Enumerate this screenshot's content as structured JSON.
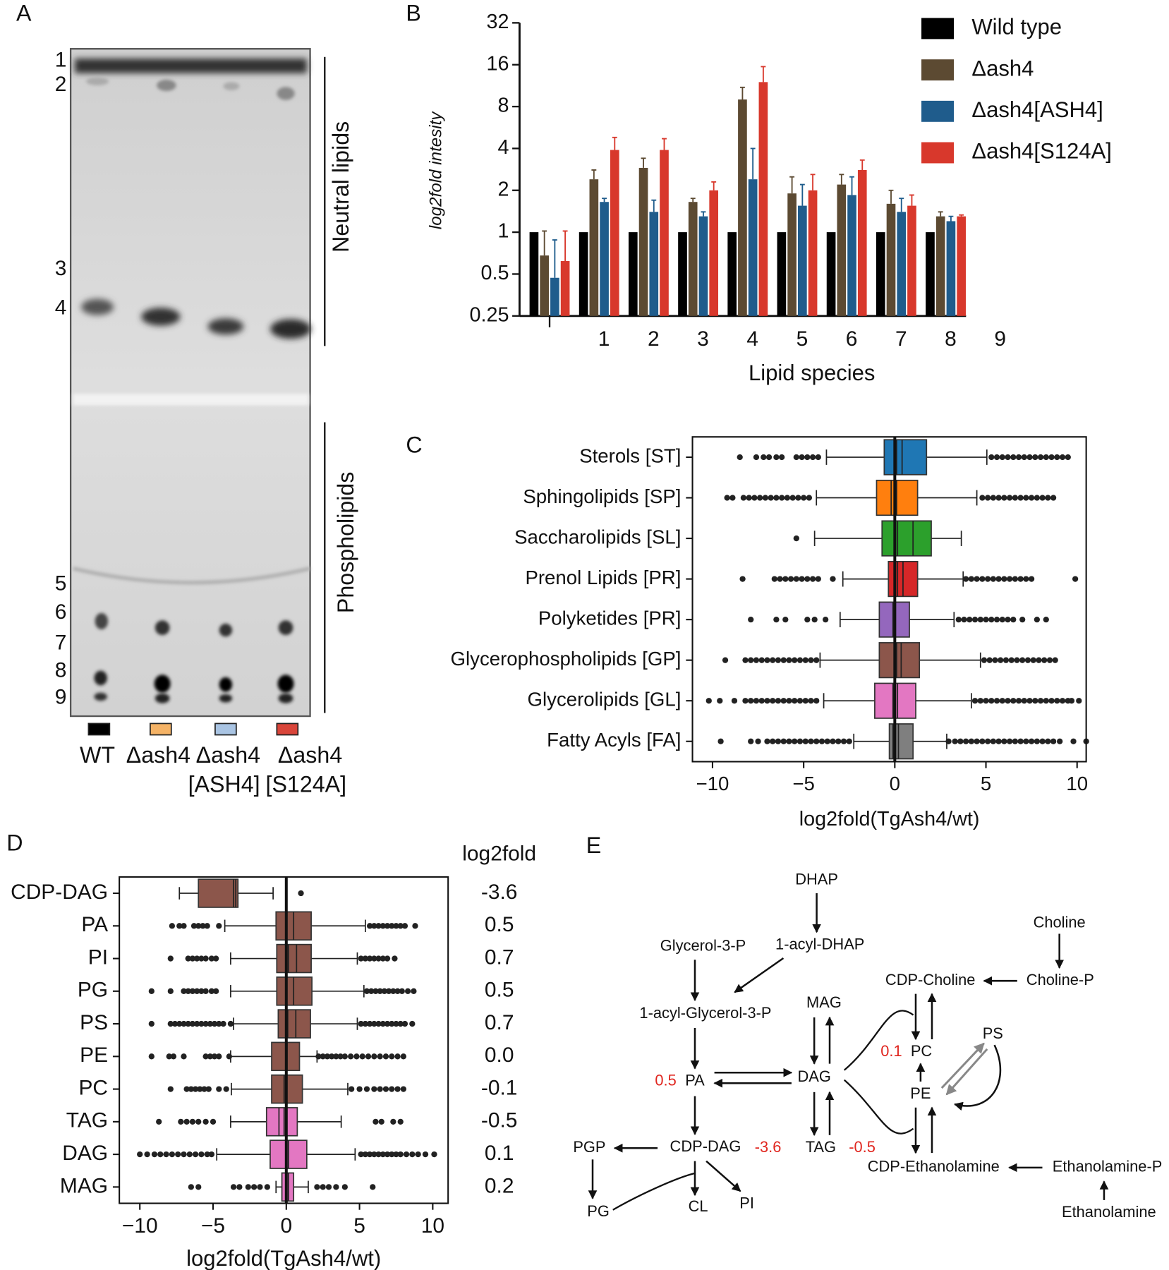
{
  "panel_a": {
    "label": "A",
    "band_numbers": [
      "1",
      "2",
      "3",
      "4",
      "5",
      "6",
      "7",
      "8",
      "9"
    ],
    "regions": [
      "Neutral lipids",
      "Phospholipids"
    ],
    "lanes": [
      {
        "lines": [
          "WT"
        ],
        "color": "#000000"
      },
      {
        "lines": [
          "Δash4"
        ],
        "color": "#f5b366"
      },
      {
        "lines": [
          "Δash4",
          "[ASH4]"
        ],
        "color": "#a9c4e3"
      },
      {
        "lines": [
          "Δash4",
          "[S124A]"
        ],
        "color": "#d9453a"
      }
    ]
  },
  "chart_data": [
    {
      "type": "bar",
      "panel": "B",
      "ylabel": "log2fold intesity",
      "xlabel": "Lipid species",
      "log_base": 2,
      "ylim": [
        0.25,
        32
      ],
      "yticks": [
        0.25,
        0.5,
        1,
        2,
        4,
        8,
        16,
        32
      ],
      "legend": "outside right",
      "categories": [
        null,
        "1",
        "2",
        "3",
        "4",
        "5",
        "6",
        "7",
        "8",
        "9"
      ],
      "series": [
        {
          "name": "Wild type",
          "color": "#000000",
          "values": [
            1,
            1,
            1,
            1,
            1,
            1,
            1,
            1,
            1,
            null
          ]
        },
        {
          "name": "Δash4",
          "color": "#5c4a32",
          "values": [
            0.68,
            2.4,
            2.9,
            1.65,
            9,
            1.9,
            2.2,
            1.6,
            1.3,
            null
          ],
          "errors": [
            0.34,
            0.4,
            0.5,
            0.1,
            2,
            0.6,
            0.4,
            0.4,
            0.1,
            null
          ]
        },
        {
          "name": "Δash4[ASH4]",
          "color": "#1f5c8c",
          "values": [
            0.47,
            1.65,
            1.4,
            1.3,
            2.4,
            1.55,
            1.85,
            1.4,
            1.2,
            null
          ],
          "errors": [
            0.41,
            0.1,
            0.3,
            0.1,
            1.6,
            0.65,
            0.65,
            0.35,
            0.1,
            null
          ]
        },
        {
          "name": "Δash4[S124A]",
          "color": "#d8382c",
          "values": [
            0.62,
            3.9,
            3.9,
            2.0,
            12,
            2.0,
            2.8,
            1.55,
            1.3,
            null
          ],
          "errors": [
            0.4,
            0.9,
            0.8,
            0.3,
            3.5,
            0.6,
            0.5,
            0.3,
            0.03,
            null
          ]
        }
      ]
    },
    {
      "type": "box",
      "panel": "C",
      "xlabel": "log2fold(TgAsh4/wt)",
      "xlim": [
        -11.1,
        10.5
      ],
      "xticks": [
        {
          "value": -10,
          "label": "−10"
        },
        {
          "value": -5,
          "label": "−5"
        },
        0,
        5,
        10
      ],
      "reference_line": 0,
      "categories": [
        "Sterols [ST]",
        "Sphingolipids [SP]",
        "Saccharolipids [SL]",
        "Prenol Lipids [PR]",
        "Polyketides [PR]",
        "Glycerophospholipids [GP]",
        "Glycerolipids [GL]",
        "Fatty Acyls [FA]"
      ],
      "colors": [
        "#1f77b4",
        "#ff7f0e",
        "#2ca02c",
        "#d62728",
        "#9467bd",
        "#8c564b",
        "#e377c2",
        "#7f7f7f"
      ],
      "whisker_low": [
        -3.75,
        -4.3,
        -4.4,
        -2.85,
        -3.0,
        -4.1,
        -3.9,
        -2.25
      ],
      "q1": [
        -0.58,
        -1.0,
        -0.7,
        -0.35,
        -0.85,
        -0.85,
        -1.1,
        -0.3
      ],
      "median": [
        0.1,
        -0.2,
        0.15,
        0.15,
        -0.1,
        0.1,
        -0.1,
        -0.1
      ],
      "mean": [
        0.4,
        0.1,
        1.0,
        0.45,
        0.0,
        0.35,
        0.15,
        0.2
      ],
      "q3": [
        1.74,
        1.25,
        2.0,
        1.25,
        0.8,
        1.35,
        1.15,
        1.0
      ],
      "whisker_high": [
        5.05,
        4.5,
        3.65,
        3.75,
        3.25,
        4.7,
        4.2,
        2.85
      ],
      "outliers": [
        [
          -8.5,
          -7.6,
          -7.2,
          -6.9,
          -6.5,
          -6.2,
          -5.4,
          -5.1,
          -4.8,
          -4.5,
          -4.2,
          5.3,
          5.6,
          5.9,
          6.2,
          6.5,
          6.8,
          7.1,
          7.4,
          7.7,
          8.0,
          8.3,
          8.6,
          8.9,
          9.2,
          9.5
        ],
        [
          -9.2,
          -8.9,
          -8.3,
          -8.0,
          -7.7,
          -7.4,
          -7.1,
          -6.8,
          -6.5,
          -6.2,
          -5.9,
          -5.6,
          -5.3,
          -5.0,
          -4.7,
          4.8,
          5.1,
          5.4,
          5.7,
          6.0,
          6.3,
          6.6,
          6.9,
          7.2,
          7.5,
          7.8,
          8.1,
          8.4,
          8.7
        ],
        [
          -5.4
        ],
        [
          -8.35,
          -6.6,
          -6.3,
          -6.0,
          -5.7,
          -5.4,
          -5.1,
          -4.8,
          -4.5,
          -4.2,
          -3.4,
          3.9,
          4.2,
          4.5,
          4.8,
          5.1,
          5.4,
          5.7,
          6.0,
          6.3,
          6.6,
          6.9,
          7.2,
          7.5,
          9.9
        ],
        [
          -7.9,
          -6.5,
          -6.0,
          -4.8,
          -4.4,
          -3.8,
          3.5,
          3.8,
          4.1,
          4.4,
          4.7,
          5.0,
          5.3,
          5.6,
          5.9,
          6.2,
          6.5,
          7.0,
          7.8,
          8.3
        ],
        [
          -9.3,
          -8.2,
          -7.9,
          -7.6,
          -7.3,
          -7.0,
          -6.7,
          -6.4,
          -6.1,
          -5.8,
          -5.5,
          -5.2,
          -4.9,
          -4.6,
          -4.3,
          4.9,
          5.2,
          5.5,
          5.8,
          6.1,
          6.4,
          6.7,
          7.0,
          7.3,
          7.6,
          7.9,
          8.2,
          8.5,
          8.8
        ],
        [
          -10.2,
          -9.6,
          -8.8,
          -8.2,
          -7.9,
          -7.6,
          -7.3,
          -7.0,
          -6.7,
          -6.4,
          -6.1,
          -5.8,
          -5.5,
          -5.2,
          -4.9,
          -4.6,
          -4.3,
          4.4,
          4.7,
          5.0,
          5.3,
          5.6,
          5.9,
          6.2,
          6.5,
          6.8,
          7.1,
          7.4,
          7.7,
          8.0,
          8.3,
          8.6,
          8.9,
          9.2,
          9.5,
          9.7,
          10.1
        ],
        [
          -9.55,
          -7.9,
          -7.5,
          -7.0,
          -6.7,
          -6.4,
          -6.1,
          -5.8,
          -5.5,
          -5.2,
          -4.9,
          -4.6,
          -4.3,
          -4.0,
          -3.7,
          -3.4,
          -3.1,
          -2.8,
          -2.5,
          2.95,
          3.3,
          3.6,
          3.9,
          4.2,
          4.5,
          4.8,
          5.1,
          5.4,
          5.7,
          6.0,
          6.3,
          6.6,
          6.9,
          7.2,
          7.5,
          7.8,
          8.1,
          8.4,
          8.7,
          9.05,
          9.8,
          10.5
        ]
      ]
    },
    {
      "type": "box",
      "panel": "D",
      "xlabel": "log2fold(TgAsh4/wt)",
      "xlim": [
        -11.4,
        11.05
      ],
      "xticks": [
        {
          "value": -10,
          "label": "−10"
        },
        {
          "value": -5,
          "label": "−5"
        },
        0,
        5,
        10
      ],
      "reference_line": 0,
      "categories": [
        "CDP-DAG",
        "PA",
        "PI",
        "PG",
        "PS",
        "PE",
        "PC",
        "TAG",
        "DAG",
        "MAG"
      ],
      "colors": [
        "#8c564b",
        "#8c564b",
        "#8c564b",
        "#8c564b",
        "#8c564b",
        "#8c564b",
        "#8c564b",
        "#e377c2",
        "#e377c2",
        "#e377c2"
      ],
      "whisker_low": [
        -7.3,
        -4.2,
        -3.8,
        -3.8,
        -3.6,
        -3.8,
        -3.75,
        -3.8,
        -4.75,
        -0.7
      ],
      "q1": [
        -6.0,
        -0.7,
        -0.65,
        -0.65,
        -0.55,
        -1.0,
        -1.0,
        -1.35,
        -1.1,
        -0.3
      ],
      "median": [
        -3.6,
        0.0,
        0.15,
        0.0,
        0.1,
        0.0,
        -0.15,
        -0.5,
        0.0,
        0.0
      ],
      "mean": [
        -3.45,
        0.5,
        0.7,
        0.5,
        0.65,
        0.05,
        0.0,
        -0.15,
        0.15,
        0.15
      ],
      "q3": [
        -3.3,
        1.7,
        1.7,
        1.75,
        1.65,
        0.9,
        1.1,
        0.75,
        1.4,
        0.5
      ],
      "whisker_high": [
        -0.9,
        5.4,
        4.85,
        5.3,
        4.85,
        2.1,
        4.2,
        3.75,
        4.7,
        1.5
      ],
      "outliers": [
        [
          1.0
        ],
        [
          -7.8,
          -7.3,
          -7.0,
          -6.3,
          -6.0,
          -5.7,
          -5.4,
          -4.6,
          5.7,
          6.0,
          6.3,
          6.6,
          6.9,
          7.2,
          7.5,
          7.8,
          8.1,
          8.8
        ],
        [
          -7.9,
          -6.7,
          -6.4,
          -6.1,
          -5.8,
          -5.5,
          -5.1,
          -4.8,
          5.1,
          5.4,
          5.7,
          6.0,
          6.3,
          6.6,
          6.9,
          7.4
        ],
        [
          -9.2,
          -7.9,
          -7.0,
          -6.7,
          -6.4,
          -6.1,
          -5.8,
          -5.5,
          -5.1,
          -4.8,
          5.5,
          5.8,
          6.1,
          6.4,
          6.7,
          7.0,
          7.3,
          7.6,
          7.9,
          8.3,
          8.7
        ],
        [
          -9.2,
          -7.9,
          -7.6,
          -7.3,
          -7.0,
          -6.7,
          -6.4,
          -6.1,
          -5.8,
          -5.5,
          -5.2,
          -4.9,
          -4.6,
          -4.3,
          -3.8,
          5.1,
          5.4,
          5.7,
          6.0,
          6.3,
          6.6,
          6.9,
          7.2,
          7.5,
          7.8,
          8.1,
          8.6
        ],
        [
          -9.2,
          -8.0,
          -7.7,
          -7.0,
          -5.5,
          -5.2,
          -4.9,
          -4.6,
          -3.9,
          2.2,
          2.5,
          2.8,
          3.1,
          3.4,
          3.7,
          4.0,
          4.4,
          4.8,
          5.2,
          5.6,
          6.0,
          6.4,
          6.8,
          7.2,
          7.6,
          8.0
        ],
        [
          -7.9,
          -6.8,
          -6.5,
          -6.2,
          -5.9,
          -5.6,
          -5.3,
          -4.6,
          -4.1,
          4.45,
          5.0,
          5.5,
          6.0,
          6.4,
          6.8,
          7.2,
          7.6,
          8.0
        ],
        [
          -8.7,
          -7.2,
          -6.8,
          -6.4,
          -6.0,
          -5.5,
          -5.0,
          6.1,
          6.5,
          7.3,
          7.8
        ],
        [
          -10.0,
          -9.5,
          -9.0,
          -8.6,
          -8.2,
          -7.8,
          -7.4,
          -7.0,
          -6.6,
          -6.2,
          -5.8,
          -5.4,
          -5.1,
          5.1,
          5.4,
          5.7,
          6.0,
          6.3,
          6.6,
          6.9,
          7.2,
          7.5,
          7.8,
          8.2,
          8.6,
          9.0,
          9.5,
          10.1
        ],
        [
          -6.5,
          -6.0,
          -3.6,
          -3.2,
          -2.6,
          -2.2,
          -1.8,
          -1.3,
          2.1,
          2.5,
          2.9,
          3.4,
          4.0,
          5.9
        ]
      ],
      "fold_change": {
        "title": "log2fold",
        "values": [
          -3.6,
          0.5,
          0.7,
          0.5,
          0.7,
          0.0,
          -0.1,
          -0.5,
          0.1,
          0.2
        ],
        "value_labels": [
          "-3.6",
          "0.5",
          "0.7",
          "0.5",
          "0.7",
          "0.0",
          "-0.1",
          "-0.5",
          "0.1",
          "0.2"
        ]
      }
    }
  ],
  "panel_e": {
    "label": "E",
    "nodes": [
      "DHAP",
      "1-acyl-DHAP",
      "Glycerol-3-P",
      "1-acyl-Glycerol-3-P",
      "PA",
      "DAG",
      "MAG",
      "TAG",
      "CDP-DAG",
      "PGP",
      "PG",
      "CL",
      "PI",
      "Choline",
      "Choline-P",
      "CDP-Choline",
      "PC",
      "PS",
      "PE",
      "CDP-Ethanolamine",
      "Ethanolamine-P",
      "Ethanolamine"
    ],
    "values": [
      0.5,
      -3.6,
      0.1,
      -0.5
    ]
  }
}
